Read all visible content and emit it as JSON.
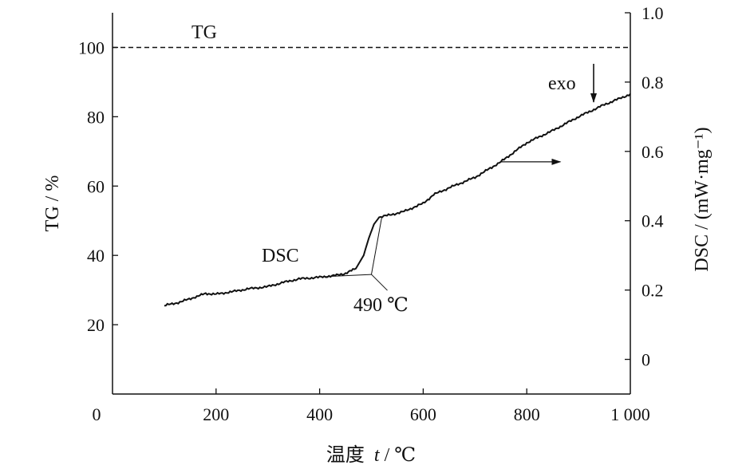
{
  "chart_data": {
    "type": "line",
    "xlabel_prefix": "温度",
    "xlabel_var": "t",
    "xlabel_unit": " / ℃",
    "ylabel_left": "TG / %",
    "ylabel_right": "DSC / (mW·mg⁻¹)",
    "xlim": [
      0,
      1000
    ],
    "ylim_left": [
      0,
      110
    ],
    "ylim_right": [
      -0.1,
      1.0
    ],
    "x_ticks": [
      {
        "value": 0,
        "label": "0"
      },
      {
        "value": 200,
        "label": "200"
      },
      {
        "value": 400,
        "label": "400"
      },
      {
        "value": 600,
        "label": "600"
      },
      {
        "value": 800,
        "label": "800"
      },
      {
        "value": 1000,
        "label": "1 000"
      }
    ],
    "y_left_ticks": [
      {
        "value": 20,
        "label": "20"
      },
      {
        "value": 40,
        "label": "40"
      },
      {
        "value": 60,
        "label": "60"
      },
      {
        "value": 80,
        "label": "80"
      },
      {
        "value": 100,
        "label": "100"
      }
    ],
    "y_right_ticks": [
      {
        "value": 0,
        "label": "0"
      },
      {
        "value": 0.2,
        "label": "0.2"
      },
      {
        "value": 0.4,
        "label": "0.4"
      },
      {
        "value": 0.6,
        "label": "0.6"
      },
      {
        "value": 0.8,
        "label": "0.8"
      },
      {
        "value": 1.0,
        "label": "1.0"
      }
    ],
    "series": [
      {
        "name": "TG",
        "axis": "left",
        "style": "dashed",
        "points": [
          [
            0,
            100
          ],
          [
            1000,
            100
          ]
        ]
      },
      {
        "name": "DSC",
        "axis": "right",
        "style": "solid",
        "points": [
          [
            100,
            0.155
          ],
          [
            130,
            0.165
          ],
          [
            160,
            0.18
          ],
          [
            180,
            0.19
          ],
          [
            200,
            0.188
          ],
          [
            230,
            0.195
          ],
          [
            260,
            0.203
          ],
          [
            300,
            0.21
          ],
          [
            330,
            0.222
          ],
          [
            360,
            0.232
          ],
          [
            400,
            0.237
          ],
          [
            430,
            0.242
          ],
          [
            450,
            0.248
          ],
          [
            470,
            0.262
          ],
          [
            485,
            0.3
          ],
          [
            495,
            0.35
          ],
          [
            505,
            0.39
          ],
          [
            515,
            0.41
          ],
          [
            530,
            0.415
          ],
          [
            560,
            0.425
          ],
          [
            600,
            0.45
          ],
          [
            620,
            0.475
          ],
          [
            650,
            0.495
          ],
          [
            700,
            0.525
          ],
          [
            750,
            0.57
          ],
          [
            800,
            0.625
          ],
          [
            850,
            0.66
          ],
          [
            900,
            0.7
          ],
          [
            950,
            0.735
          ],
          [
            1000,
            0.765
          ]
        ]
      }
    ],
    "onset": {
      "x": 500,
      "y": 0.245,
      "label": "490 ℃"
    },
    "annotations": {
      "tg_label": "TG",
      "dsc_label": "DSC",
      "exo_label": "exo"
    },
    "axis_arrow": {
      "from_x": 750,
      "y": 0.57,
      "to_x": 865,
      "points_to": "right-axis"
    },
    "colors": {
      "line": "#111111",
      "background": "#ffffff"
    }
  }
}
